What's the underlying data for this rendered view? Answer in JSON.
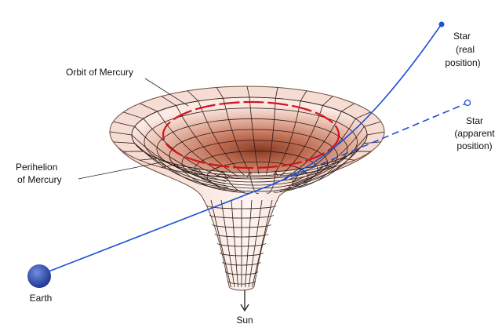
{
  "labels": {
    "orbit": "Orbit of Mercury",
    "perihelion": [
      "Perihelion",
      "of Mercury"
    ],
    "star_real": [
      "Star",
      "(real",
      "position)"
    ],
    "star_apparent": [
      "Star",
      "(apparent",
      "position)"
    ],
    "earth": "Earth",
    "sun": "Sun"
  }
}
